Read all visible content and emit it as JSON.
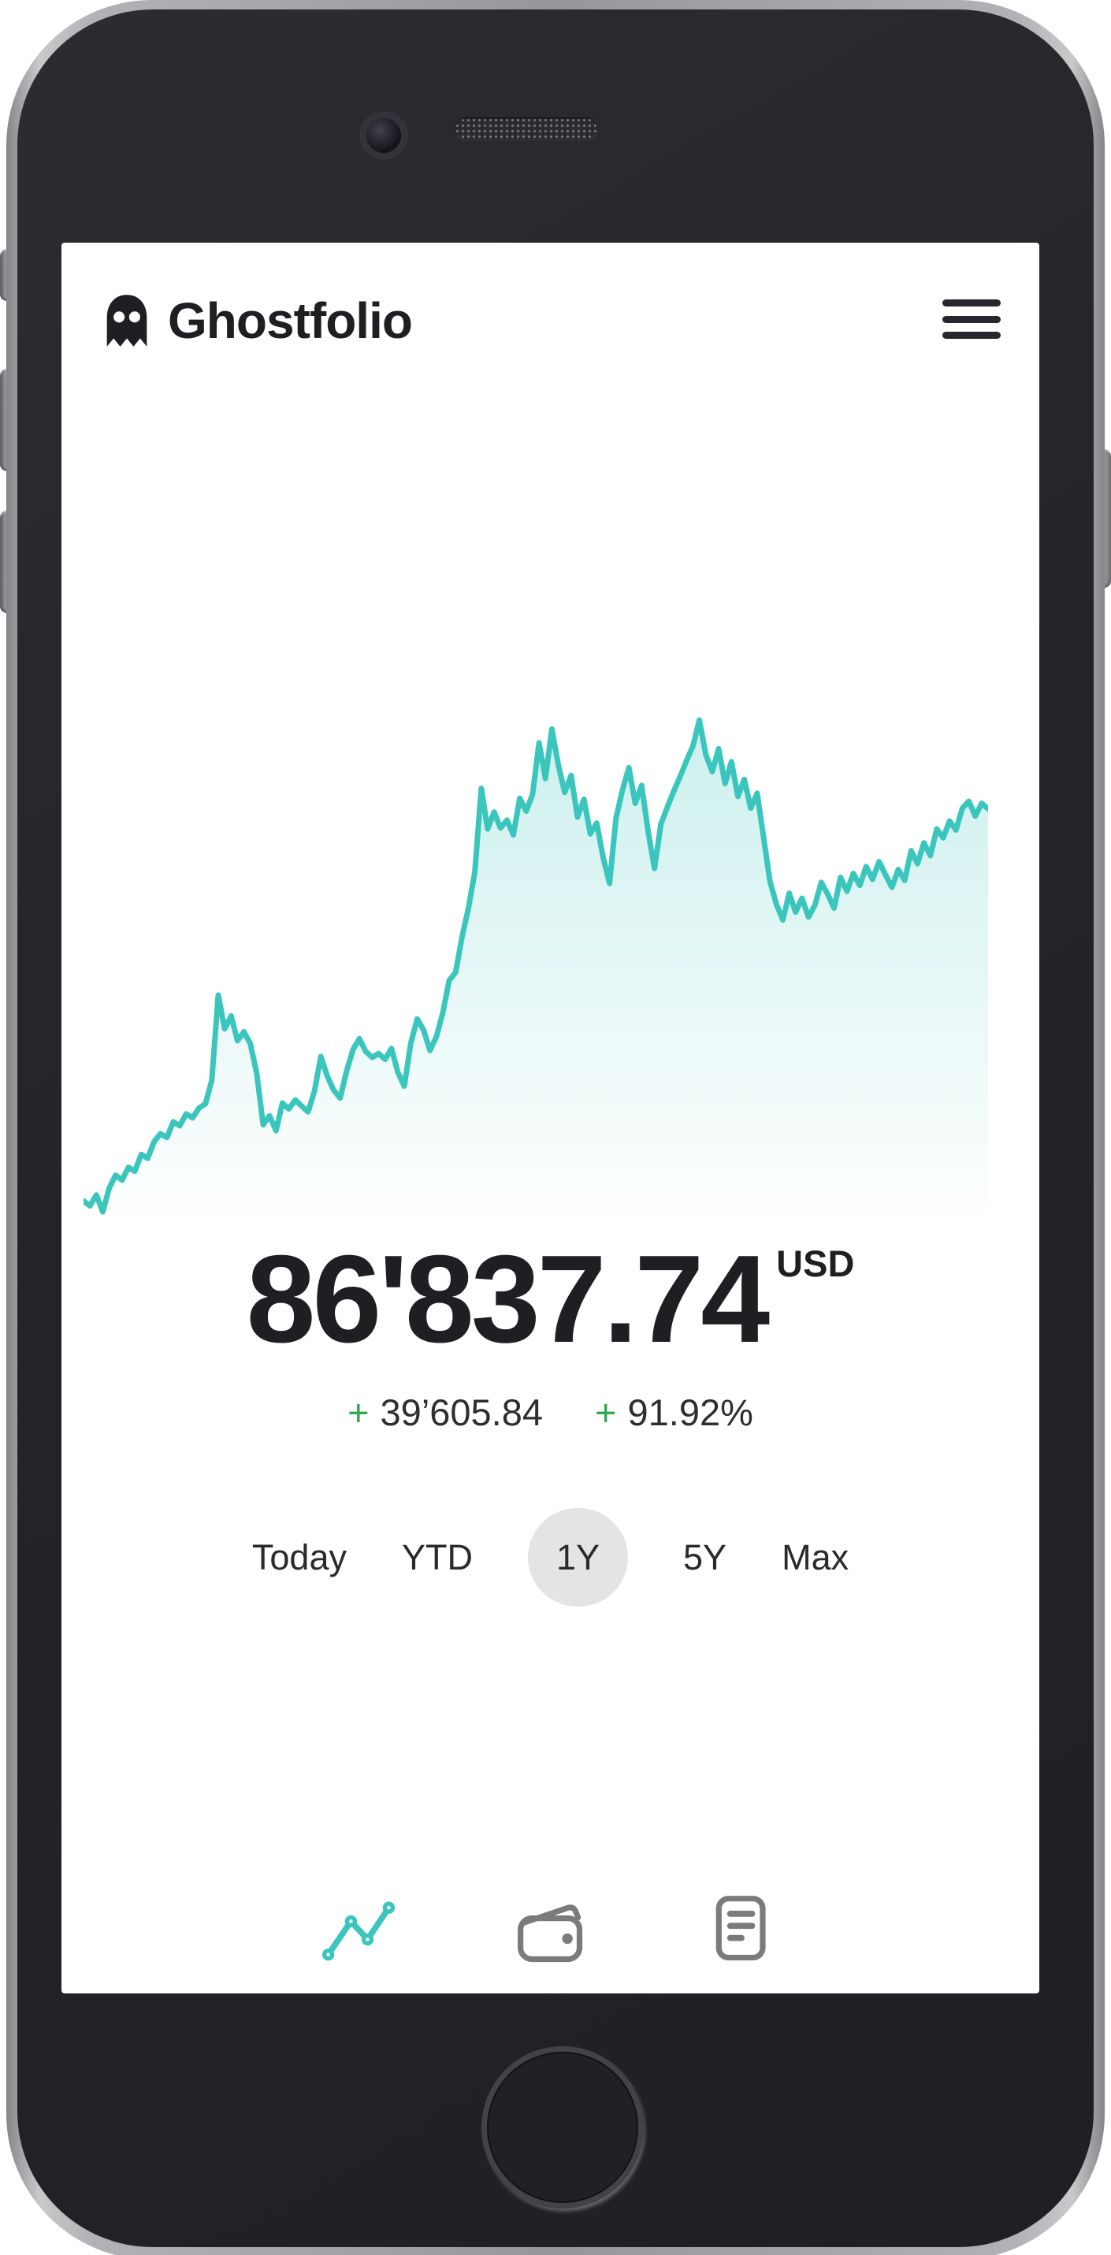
{
  "header": {
    "title": "Ghostfolio",
    "logo_icon": "ghost-icon",
    "menu_icon": "hamburger-icon"
  },
  "summary": {
    "value": "86'837.74",
    "currency": "USD",
    "change_absolute_sign": "+",
    "change_absolute": "39’605.84",
    "change_percent_sign": "+",
    "change_percent": "91.92%"
  },
  "periods": {
    "options": [
      "Today",
      "YTD",
      "1Y",
      "5Y",
      "Max"
    ],
    "selected": "1Y"
  },
  "nav": {
    "items": [
      {
        "name": "performance",
        "icon": "trend-line-icon",
        "active": true
      },
      {
        "name": "wallet",
        "icon": "wallet-icon",
        "active": false
      },
      {
        "name": "activities",
        "icon": "list-icon",
        "active": false
      }
    ]
  },
  "colors": {
    "accent": "#3bc6bd",
    "positive": "#2fa84f",
    "text": "#1f1f23",
    "text-soft": "#2e2e32",
    "pill": "#e4e4e6",
    "nav-inactive": "#7b7b7e"
  },
  "chart_data": {
    "type": "area",
    "title": "Portfolio performance, 1Y range (no axes/labels shown)",
    "xlabel": "",
    "ylabel": "",
    "axes_hidden": true,
    "legend": "none",
    "grid": false,
    "line_color": "#3bc6bd",
    "fill": "vertical gradient of line color fading to transparent",
    "y_start": 47231.9,
    "y_end": 86837.74,
    "y_min_est": 46100,
    "y_max_est": 95800,
    "values": [
      47200,
      46700,
      47800,
      46100,
      48500,
      49800,
      49300,
      50600,
      50200,
      51900,
      51500,
      53200,
      54000,
      53600,
      55200,
      54800,
      56000,
      55600,
      56600,
      57000,
      59400,
      68000,
      64600,
      65900,
      63400,
      64300,
      63100,
      60100,
      54900,
      55800,
      54300,
      57100,
      56500,
      57400,
      56800,
      56200,
      58300,
      61800,
      59800,
      58400,
      57600,
      60300,
      62500,
      63600,
      62300,
      61700,
      62100,
      61500,
      62600,
      60200,
      58800,
      63100,
      65600,
      64500,
      62400,
      63800,
      66200,
      69500,
      70300,
      73900,
      76800,
      80500,
      88900,
      84800,
      86500,
      84900,
      85700,
      84200,
      87900,
      86600,
      88300,
      93500,
      89900,
      94900,
      91300,
      88500,
      90200,
      86000,
      87800,
      84300,
      85400,
      81900,
      79300,
      85900,
      88700,
      91000,
      87400,
      89200,
      84600,
      80800,
      85300,
      87000,
      88600,
      90100,
      91700,
      93200,
      95800,
      92300,
      90600,
      92900,
      89400,
      91600,
      88100,
      89800,
      86900,
      88400,
      84000,
      79500,
      77200,
      75600,
      78300,
      76400,
      77800,
      75900,
      77100,
      79400,
      78200,
      76800,
      79900,
      78500,
      80300,
      79100,
      81000,
      79700,
      81500,
      80200,
      78900,
      80700,
      79600,
      82600,
      81300,
      83400,
      82100,
      84800,
      83900,
      85600,
      84700,
      86900,
      87600,
      86100,
      87400,
      86838
    ]
  }
}
